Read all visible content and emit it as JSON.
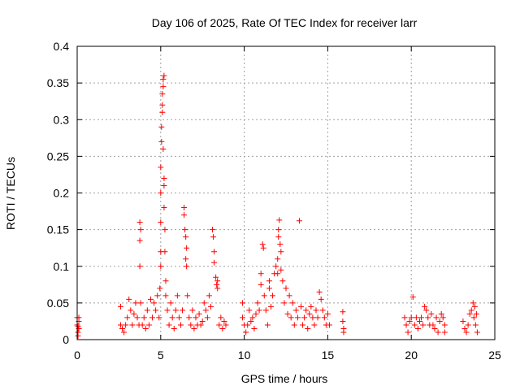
{
  "chart_data": {
    "type": "scatter",
    "title": "Day 106 of 2025, Rate Of TEC Index for receiver larr",
    "xlabel": "GPS time / hours",
    "ylabel": "ROTI / TECUs",
    "xlim": [
      0,
      25
    ],
    "ylim": [
      0,
      0.4
    ],
    "xticks": [
      0,
      5,
      10,
      15,
      20,
      25
    ],
    "xtick_labels": [
      "0",
      "5",
      "10",
      "15",
      "20",
      "25"
    ],
    "yticks": [
      0,
      0.05,
      0.1,
      0.15,
      0.2,
      0.25,
      0.3,
      0.35,
      0.4
    ],
    "ytick_labels": [
      "0",
      "0.05",
      "0.1",
      "0.15",
      "0.2",
      "0.25",
      "0.3",
      "0.35",
      "0.4"
    ],
    "grid": true,
    "marker": "plus",
    "color": "#ff0000",
    "series": [
      {
        "points": [
          [
            0.0,
            0.03
          ],
          [
            0.0,
            0.02
          ],
          [
            0.05,
            0.01
          ],
          [
            0.1,
            0.025
          ],
          [
            0.1,
            0.015
          ],
          [
            0.05,
            0.005
          ],
          [
            0.1,
            0.03
          ],
          [
            0.05,
            0.018
          ],
          [
            2.6,
            0.045
          ],
          [
            2.6,
            0.02
          ],
          [
            2.7,
            0.015
          ],
          [
            2.8,
            0.01
          ],
          [
            2.9,
            0.02
          ],
          [
            3.0,
            0.03
          ],
          [
            3.1,
            0.055
          ],
          [
            3.2,
            0.04
          ],
          [
            3.3,
            0.02
          ],
          [
            3.4,
            0.035
          ],
          [
            3.5,
            0.05
          ],
          [
            3.6,
            0.03
          ],
          [
            3.7,
            0.02
          ],
          [
            3.75,
            0.135
          ],
          [
            3.75,
            0.16
          ],
          [
            3.75,
            0.1
          ],
          [
            3.8,
            0.15
          ],
          [
            3.8,
            0.05
          ],
          [
            3.9,
            0.02
          ],
          [
            4.0,
            0.03
          ],
          [
            4.1,
            0.015
          ],
          [
            4.2,
            0.04
          ],
          [
            4.3,
            0.02
          ],
          [
            4.4,
            0.055
          ],
          [
            4.5,
            0.03
          ],
          [
            4.6,
            0.05
          ],
          [
            4.7,
            0.04
          ],
          [
            4.8,
            0.06
          ],
          [
            4.9,
            0.03
          ],
          [
            4.95,
            0.07
          ],
          [
            5.0,
            0.1
          ],
          [
            5.0,
            0.12
          ],
          [
            5.0,
            0.16
          ],
          [
            5.0,
            0.2
          ],
          [
            5.0,
            0.235
          ],
          [
            5.05,
            0.27
          ],
          [
            5.05,
            0.29
          ],
          [
            5.1,
            0.31
          ],
          [
            5.1,
            0.32
          ],
          [
            5.1,
            0.335
          ],
          [
            5.15,
            0.345
          ],
          [
            5.15,
            0.355
          ],
          [
            5.2,
            0.36
          ],
          [
            5.15,
            0.26
          ],
          [
            5.2,
            0.22
          ],
          [
            5.2,
            0.21
          ],
          [
            5.2,
            0.18
          ],
          [
            5.25,
            0.15
          ],
          [
            5.25,
            0.12
          ],
          [
            5.3,
            0.08
          ],
          [
            5.3,
            0.06
          ],
          [
            5.4,
            0.04
          ],
          [
            5.5,
            0.02
          ],
          [
            5.6,
            0.05
          ],
          [
            5.7,
            0.03
          ],
          [
            5.8,
            0.015
          ],
          [
            5.9,
            0.04
          ],
          [
            6.0,
            0.06
          ],
          [
            6.1,
            0.03
          ],
          [
            6.2,
            0.02
          ],
          [
            6.3,
            0.04
          ],
          [
            6.4,
            0.18
          ],
          [
            6.4,
            0.17
          ],
          [
            6.45,
            0.15
          ],
          [
            6.5,
            0.14
          ],
          [
            6.5,
            0.11
          ],
          [
            6.55,
            0.1
          ],
          [
            6.55,
            0.125
          ],
          [
            6.6,
            0.06
          ],
          [
            6.7,
            0.03
          ],
          [
            6.8,
            0.02
          ],
          [
            6.9,
            0.04
          ],
          [
            7.0,
            0.015
          ],
          [
            7.1,
            0.03
          ],
          [
            7.2,
            0.02
          ],
          [
            7.3,
            0.035
          ],
          [
            7.4,
            0.02
          ],
          [
            7.5,
            0.025
          ],
          [
            7.6,
            0.05
          ],
          [
            7.7,
            0.04
          ],
          [
            7.8,
            0.03
          ],
          [
            7.9,
            0.06
          ],
          [
            8.0,
            0.045
          ],
          [
            8.1,
            0.15
          ],
          [
            8.15,
            0.14
          ],
          [
            8.2,
            0.12
          ],
          [
            8.2,
            0.105
          ],
          [
            8.3,
            0.085
          ],
          [
            8.35,
            0.075
          ],
          [
            8.4,
            0.07
          ],
          [
            8.4,
            0.08
          ],
          [
            8.5,
            0.02
          ],
          [
            8.6,
            0.03
          ],
          [
            8.7,
            0.015
          ],
          [
            8.8,
            0.025
          ],
          [
            8.9,
            0.02
          ],
          [
            9.9,
            0.05
          ],
          [
            9.9,
            0.03
          ],
          [
            10.0,
            0.02
          ],
          [
            10.1,
            0.01
          ],
          [
            10.2,
            0.02
          ],
          [
            10.3,
            0.04
          ],
          [
            10.4,
            0.025
          ],
          [
            10.5,
            0.03
          ],
          [
            10.6,
            0.015
          ],
          [
            10.7,
            0.035
          ],
          [
            10.8,
            0.05
          ],
          [
            10.9,
            0.04
          ],
          [
            11.0,
            0.09
          ],
          [
            11.0,
            0.075
          ],
          [
            11.1,
            0.13
          ],
          [
            11.15,
            0.125
          ],
          [
            11.2,
            0.06
          ],
          [
            11.3,
            0.04
          ],
          [
            11.4,
            0.02
          ],
          [
            11.5,
            0.08
          ],
          [
            11.5,
            0.07
          ],
          [
            11.6,
            0.045
          ],
          [
            11.7,
            0.06
          ],
          [
            11.8,
            0.09
          ],
          [
            11.9,
            0.1
          ],
          [
            12.0,
            0.11
          ],
          [
            12.0,
            0.09
          ],
          [
            12.05,
            0.14
          ],
          [
            12.05,
            0.15
          ],
          [
            12.1,
            0.163
          ],
          [
            12.15,
            0.13
          ],
          [
            12.2,
            0.12
          ],
          [
            12.2,
            0.095
          ],
          [
            12.3,
            0.08
          ],
          [
            12.4,
            0.05
          ],
          [
            12.5,
            0.07
          ],
          [
            12.6,
            0.035
          ],
          [
            12.7,
            0.06
          ],
          [
            12.8,
            0.03
          ],
          [
            12.9,
            0.05
          ],
          [
            13.0,
            0.02
          ],
          [
            13.1,
            0.04
          ],
          [
            13.2,
            0.03
          ],
          [
            13.3,
            0.162
          ],
          [
            13.4,
            0.045
          ],
          [
            13.5,
            0.02
          ],
          [
            13.6,
            0.03
          ],
          [
            13.7,
            0.04
          ],
          [
            13.8,
            0.015
          ],
          [
            13.9,
            0.035
          ],
          [
            14.0,
            0.045
          ],
          [
            14.1,
            0.03
          ],
          [
            14.2,
            0.02
          ],
          [
            14.3,
            0.04
          ],
          [
            14.4,
            0.03
          ],
          [
            14.5,
            0.065
          ],
          [
            14.6,
            0.055
          ],
          [
            14.7,
            0.04
          ],
          [
            14.8,
            0.03
          ],
          [
            14.9,
            0.02
          ],
          [
            15.0,
            0.035
          ],
          [
            15.1,
            0.02
          ],
          [
            15.9,
            0.038
          ],
          [
            15.9,
            0.025
          ],
          [
            15.95,
            0.015
          ],
          [
            15.95,
            0.01
          ],
          [
            19.6,
            0.03
          ],
          [
            19.7,
            0.02
          ],
          [
            19.8,
            0.01
          ],
          [
            19.9,
            0.025
          ],
          [
            20.0,
            0.03
          ],
          [
            20.1,
            0.058
          ],
          [
            20.2,
            0.02
          ],
          [
            20.3,
            0.03
          ],
          [
            20.4,
            0.015
          ],
          [
            20.5,
            0.025
          ],
          [
            20.6,
            0.03
          ],
          [
            20.7,
            0.02
          ],
          [
            20.8,
            0.045
          ],
          [
            20.9,
            0.04
          ],
          [
            21.0,
            0.03
          ],
          [
            21.1,
            0.02
          ],
          [
            21.2,
            0.035
          ],
          [
            21.3,
            0.02
          ],
          [
            21.4,
            0.015
          ],
          [
            21.5,
            0.03
          ],
          [
            21.6,
            0.01
          ],
          [
            21.7,
            0.025
          ],
          [
            21.8,
            0.035
          ],
          [
            21.9,
            0.03
          ],
          [
            22.0,
            0.02
          ],
          [
            22.0,
            0.01
          ],
          [
            23.1,
            0.025
          ],
          [
            23.2,
            0.015
          ],
          [
            23.3,
            0.01
          ],
          [
            23.4,
            0.02
          ],
          [
            23.5,
            0.035
          ],
          [
            23.6,
            0.04
          ],
          [
            23.7,
            0.05
          ],
          [
            23.75,
            0.03
          ],
          [
            23.8,
            0.045
          ],
          [
            23.85,
            0.02
          ],
          [
            23.9,
            0.035
          ],
          [
            23.95,
            0.01
          ]
        ]
      }
    ]
  }
}
